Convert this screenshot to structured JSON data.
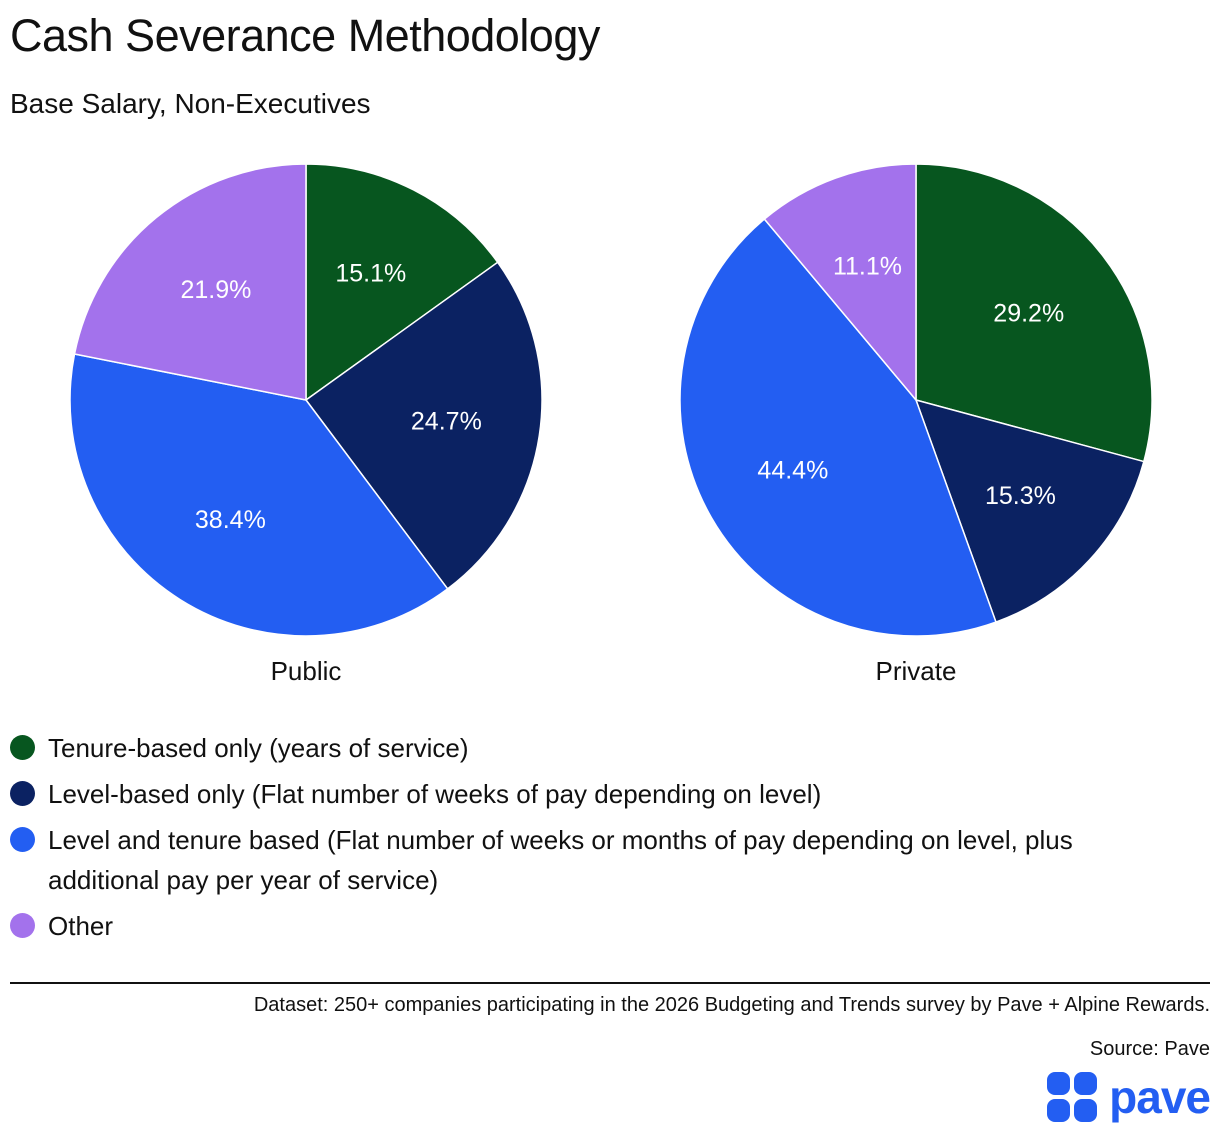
{
  "chart_data": [
    {
      "type": "pie",
      "label": "Public",
      "categories": [
        "Tenure-based only (years of service)",
        "Level-based only (Flat number of weeks of pay depending on level)",
        "Level and tenure based (Flat number of weeks or months of pay depending on level, plus additional pay per year of service)",
        "Other"
      ],
      "values": [
        15.1,
        24.7,
        38.4,
        21.9
      ],
      "value_labels": [
        "15.1%",
        "24.7%",
        "38.4%",
        "21.9%"
      ]
    },
    {
      "type": "pie",
      "label": "Private",
      "categories": [
        "Tenure-based only (years of service)",
        "Level-based only (Flat number of weeks of pay depending on level)",
        "Level and tenure based (Flat number of weeks or months of pay depending on level, plus additional pay per year of service)",
        "Other"
      ],
      "values": [
        29.2,
        15.3,
        44.4,
        11.1
      ],
      "value_labels": [
        "29.2%",
        "15.3%",
        "44.4%",
        "11.1%"
      ]
    }
  ],
  "title": "Cash Severance Methodology",
  "subtitle": "Base Salary, Non-Executives",
  "legend": {
    "placement": "bottom-left",
    "items": [
      {
        "label": "Tenure-based only (years of service)",
        "color": "#07561f"
      },
      {
        "label": "Level-based only (Flat number of weeks of pay depending on level)",
        "color": "#0b2262"
      },
      {
        "label": "Level and tenure based (Flat number of weeks or months of pay depending on level, plus additional pay per year of service)",
        "color": "#235ef2"
      },
      {
        "label": "Other",
        "color": "#a372ec"
      }
    ]
  },
  "footer": {
    "dataset": "Dataset: 250+ companies participating in the 2026 Budgeting and Trends survey by Pave + Alpine Rewards.",
    "source": "Source: Pave"
  },
  "brand": {
    "name": "pave",
    "color": "#235ef2"
  }
}
